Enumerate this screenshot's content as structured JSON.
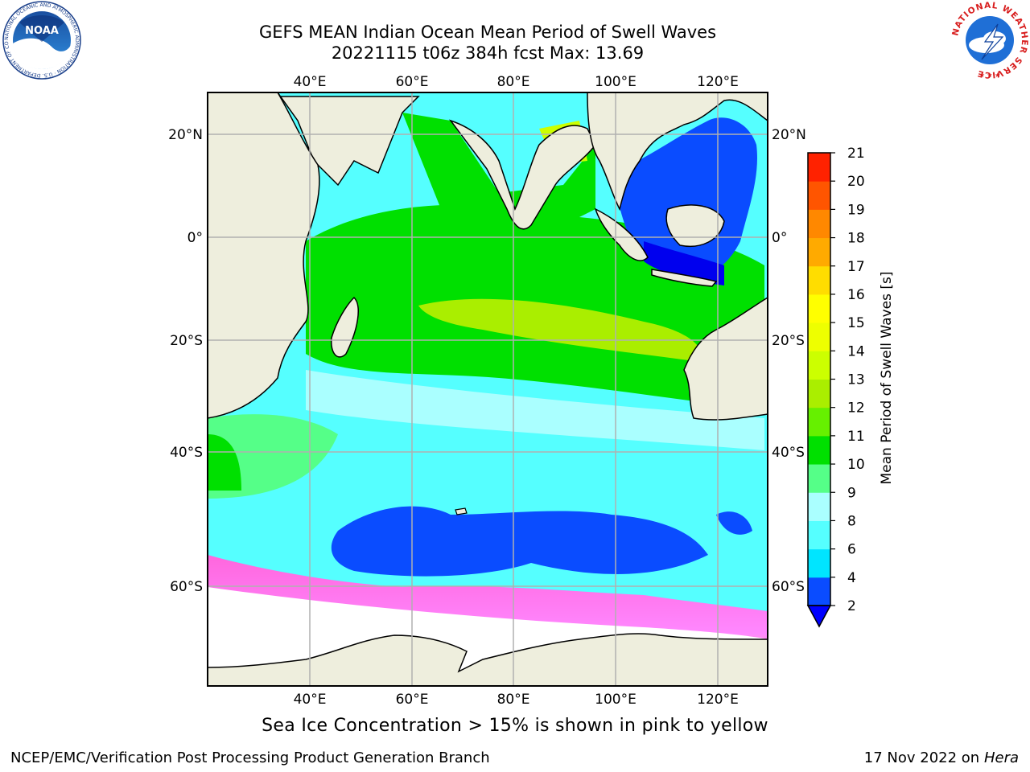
{
  "header": {
    "title_line1": "GEFS MEAN Indian Ocean Mean Period of Swell Waves",
    "title_line2": "20221115 t06z 384h fcst   Max: 13.69"
  },
  "map": {
    "lon_ticks_top": [
      "40°E",
      "60°E",
      "80°E",
      "100°E",
      "120°E"
    ],
    "lon_ticks_bottom": [
      "40°E",
      "60°E",
      "80°E",
      "100°E",
      "120°E"
    ],
    "lat_ticks_left": [
      "20°N",
      "0°",
      "20°S",
      "40°S",
      "60°S"
    ],
    "lat_ticks_right": [
      "20°N",
      "0°",
      "20°S",
      "40°S",
      "60°S"
    ],
    "land_color": "#eeeedd",
    "grid_color": "#b0b0b0"
  },
  "colorbar": {
    "label": "Mean Period of Swell Waves [s]",
    "tick_labels": [
      "2",
      "4",
      "6",
      "8",
      "9",
      "10",
      "11",
      "12",
      "13",
      "14",
      "15",
      "16",
      "17",
      "18",
      "19",
      "20",
      "21"
    ],
    "colors": [
      "#0a4cff",
      "#00e5ff",
      "#55ffff",
      "#aaffff",
      "#55ff88",
      "#00e000",
      "#66f000",
      "#aaee00",
      "#ccff00",
      "#eeff00",
      "#ffff00",
      "#ffdd00",
      "#ffaa00",
      "#ff8800",
      "#ff5500",
      "#ff2200"
    ],
    "under_color": "#0000ff"
  },
  "logos": {
    "noaa_text": "NOAA",
    "noaa_ring_text": "NATIONAL OCEANIC AND ATMOSPHERIC ADMINISTRATION · U.S. DEPARTMENT OF COMMERCE",
    "nws_ring_text": "NATIONAL WEATHER SERVICE"
  },
  "caption": "Sea Ice Concentration > 15% is shown in pink to yellow",
  "footer": {
    "left": "NCEP/EMC/Verification Post Processing Product Generation Branch",
    "right_date": "17 Nov 2022 on",
    "right_host": "Hera"
  }
}
